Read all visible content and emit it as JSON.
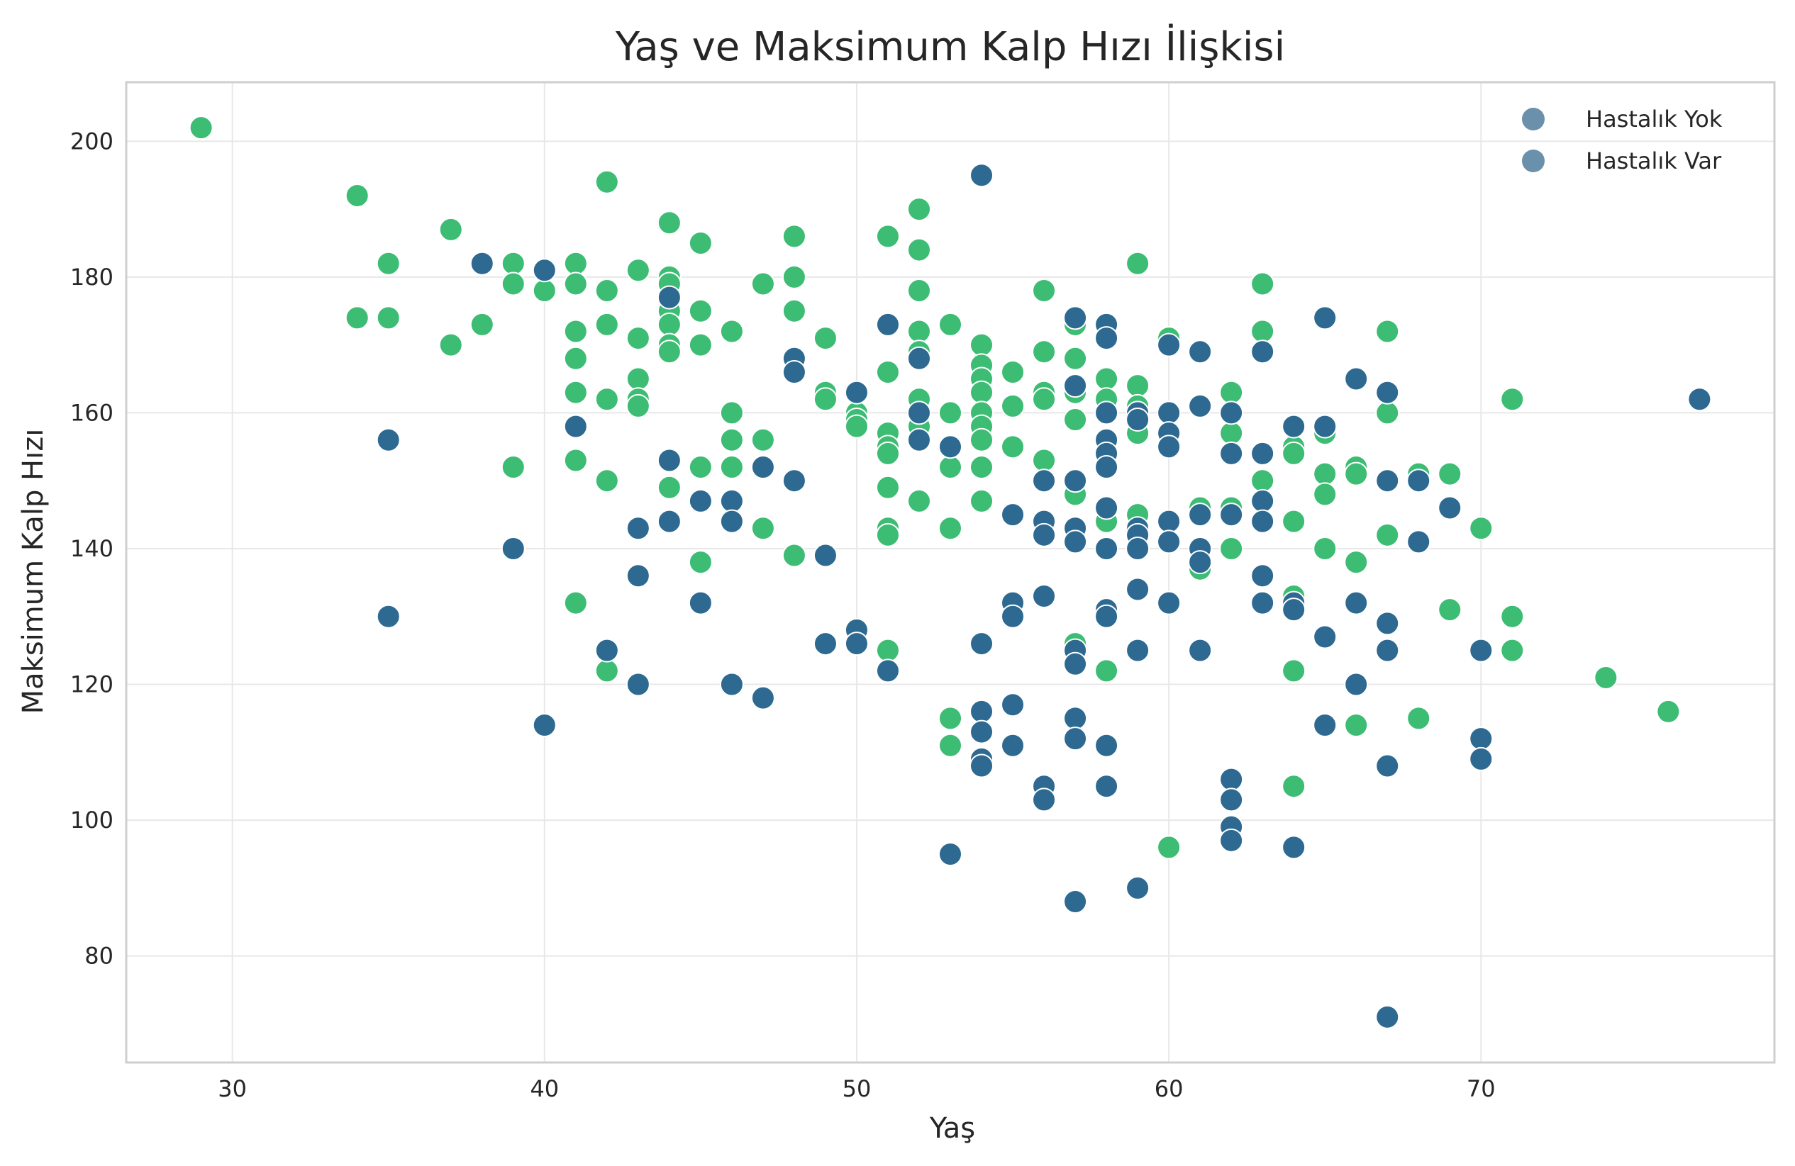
{
  "chart_data": {
    "type": "scatter",
    "title": "Yaş ve Maksimum Kalp Hızı İlişkisi",
    "xlabel": "Yaş",
    "ylabel": "Maksimum Kalp Hızı",
    "xlim": [
      26.6,
      79.4
    ],
    "ylim": [
      64.3,
      208.7
    ],
    "xticks": [
      30,
      40,
      50,
      60,
      70
    ],
    "yticks": [
      80,
      100,
      120,
      140,
      160,
      180,
      200
    ],
    "grid": true,
    "legend_position": "top-right",
    "colors": {
      "hastalik_var": "#3dbc74",
      "hastalik_yok": "#2d6990",
      "legend_marker": "#6b90ab"
    },
    "legend": [
      {
        "label": "Hastalık Yok"
      },
      {
        "label": "Hastalık Var"
      }
    ],
    "series": [
      {
        "key": "hastalik_var",
        "points": [
          [
            29,
            202
          ],
          [
            34,
            192
          ],
          [
            34,
            174
          ],
          [
            35,
            182
          ],
          [
            35,
            174
          ],
          [
            37,
            187
          ],
          [
            37,
            170
          ],
          [
            38,
            173
          ],
          [
            39,
            182
          ],
          [
            39,
            179
          ],
          [
            39,
            152
          ],
          [
            40,
            178
          ],
          [
            41,
            182
          ],
          [
            41,
            179
          ],
          [
            41,
            172
          ],
          [
            41,
            168
          ],
          [
            41,
            163
          ],
          [
            41,
            153
          ],
          [
            41,
            132
          ],
          [
            42,
            194
          ],
          [
            42,
            178
          ],
          [
            42,
            173
          ],
          [
            42,
            162
          ],
          [
            42,
            150
          ],
          [
            42,
            122
          ],
          [
            43,
            181
          ],
          [
            43,
            171
          ],
          [
            43,
            165
          ],
          [
            43,
            162
          ],
          [
            43,
            161
          ],
          [
            44,
            188
          ],
          [
            44,
            180
          ],
          [
            44,
            179
          ],
          [
            44,
            175
          ],
          [
            44,
            173
          ],
          [
            44,
            170
          ],
          [
            44,
            169
          ],
          [
            44,
            149
          ],
          [
            45,
            185
          ],
          [
            45,
            175
          ],
          [
            45,
            170
          ],
          [
            45,
            152
          ],
          [
            45,
            138
          ],
          [
            46,
            172
          ],
          [
            46,
            160
          ],
          [
            46,
            156
          ],
          [
            46,
            152
          ],
          [
            47,
            179
          ],
          [
            47,
            156
          ],
          [
            47,
            143
          ],
          [
            48,
            186
          ],
          [
            48,
            180
          ],
          [
            48,
            175
          ],
          [
            48,
            139
          ],
          [
            49,
            171
          ],
          [
            49,
            163
          ],
          [
            49,
            162
          ],
          [
            50,
            160
          ],
          [
            50,
            159
          ],
          [
            50,
            158
          ],
          [
            51,
            186
          ],
          [
            51,
            166
          ],
          [
            51,
            157
          ],
          [
            51,
            155
          ],
          [
            51,
            154
          ],
          [
            51,
            149
          ],
          [
            51,
            143
          ],
          [
            51,
            142
          ],
          [
            51,
            125
          ],
          [
            52,
            190
          ],
          [
            52,
            184
          ],
          [
            52,
            178
          ],
          [
            52,
            172
          ],
          [
            52,
            169
          ],
          [
            52,
            162
          ],
          [
            52,
            158
          ],
          [
            52,
            147
          ],
          [
            53,
            173
          ],
          [
            53,
            160
          ],
          [
            53,
            152
          ],
          [
            53,
            143
          ],
          [
            53,
            115
          ],
          [
            53,
            111
          ],
          [
            54,
            170
          ],
          [
            54,
            167
          ],
          [
            54,
            165
          ],
          [
            54,
            163
          ],
          [
            54,
            160
          ],
          [
            54,
            158
          ],
          [
            54,
            156
          ],
          [
            54,
            152
          ],
          [
            54,
            147
          ],
          [
            55,
            166
          ],
          [
            55,
            161
          ],
          [
            55,
            155
          ],
          [
            56,
            178
          ],
          [
            56,
            169
          ],
          [
            56,
            163
          ],
          [
            56,
            162
          ],
          [
            56,
            153
          ],
          [
            57,
            173
          ],
          [
            57,
            168
          ],
          [
            57,
            163
          ],
          [
            57,
            159
          ],
          [
            57,
            148
          ],
          [
            57,
            126
          ],
          [
            58,
            165
          ],
          [
            58,
            162
          ],
          [
            58,
            154
          ],
          [
            58,
            144
          ],
          [
            58,
            122
          ],
          [
            59,
            182
          ],
          [
            59,
            164
          ],
          [
            59,
            161
          ],
          [
            59,
            157
          ],
          [
            59,
            145
          ],
          [
            60,
            171
          ],
          [
            60,
            96
          ],
          [
            61,
            146
          ],
          [
            61,
            137
          ],
          [
            62,
            163
          ],
          [
            62,
            157
          ],
          [
            62,
            146
          ],
          [
            62,
            140
          ],
          [
            63,
            179
          ],
          [
            63,
            172
          ],
          [
            63,
            150
          ],
          [
            64,
            155
          ],
          [
            64,
            154
          ],
          [
            64,
            144
          ],
          [
            64,
            133
          ],
          [
            64,
            122
          ],
          [
            64,
            105
          ],
          [
            65,
            157
          ],
          [
            65,
            151
          ],
          [
            65,
            148
          ],
          [
            65,
            140
          ],
          [
            66,
            152
          ],
          [
            66,
            151
          ],
          [
            66,
            138
          ],
          [
            66,
            114
          ],
          [
            67,
            172
          ],
          [
            67,
            160
          ],
          [
            67,
            142
          ],
          [
            68,
            151
          ],
          [
            68,
            115
          ],
          [
            69,
            151
          ],
          [
            69,
            131
          ],
          [
            70,
            143
          ],
          [
            71,
            162
          ],
          [
            71,
            130
          ],
          [
            71,
            125
          ],
          [
            74,
            121
          ],
          [
            76,
            116
          ]
        ]
      },
      {
        "key": "hastalik_yok",
        "points": [
          [
            35,
            156
          ],
          [
            35,
            130
          ],
          [
            38,
            182
          ],
          [
            39,
            140
          ],
          [
            40,
            181
          ],
          [
            40,
            114
          ],
          [
            41,
            158
          ],
          [
            42,
            125
          ],
          [
            43,
            143
          ],
          [
            43,
            136
          ],
          [
            43,
            120
          ],
          [
            44,
            177
          ],
          [
            44,
            153
          ],
          [
            44,
            144
          ],
          [
            45,
            147
          ],
          [
            45,
            132
          ],
          [
            46,
            147
          ],
          [
            46,
            144
          ],
          [
            46,
            120
          ],
          [
            47,
            152
          ],
          [
            47,
            118
          ],
          [
            48,
            168
          ],
          [
            48,
            166
          ],
          [
            48,
            150
          ],
          [
            49,
            139
          ],
          [
            49,
            126
          ],
          [
            50,
            163
          ],
          [
            50,
            128
          ],
          [
            50,
            126
          ],
          [
            51,
            173
          ],
          [
            51,
            122
          ],
          [
            52,
            168
          ],
          [
            52,
            160
          ],
          [
            52,
            156
          ],
          [
            53,
            155
          ],
          [
            53,
            95
          ],
          [
            54,
            195
          ],
          [
            54,
            126
          ],
          [
            54,
            116
          ],
          [
            54,
            113
          ],
          [
            54,
            109
          ],
          [
            54,
            108
          ],
          [
            55,
            145
          ],
          [
            55,
            132
          ],
          [
            55,
            130
          ],
          [
            55,
            117
          ],
          [
            55,
            111
          ],
          [
            56,
            150
          ],
          [
            56,
            144
          ],
          [
            56,
            142
          ],
          [
            56,
            133
          ],
          [
            56,
            105
          ],
          [
            56,
            103
          ],
          [
            57,
            174
          ],
          [
            57,
            164
          ],
          [
            57,
            150
          ],
          [
            57,
            143
          ],
          [
            57,
            141
          ],
          [
            57,
            125
          ],
          [
            57,
            123
          ],
          [
            57,
            115
          ],
          [
            57,
            112
          ],
          [
            57,
            88
          ],
          [
            58,
            173
          ],
          [
            58,
            171
          ],
          [
            58,
            160
          ],
          [
            58,
            156
          ],
          [
            58,
            154
          ],
          [
            58,
            152
          ],
          [
            58,
            146
          ],
          [
            58,
            140
          ],
          [
            58,
            131
          ],
          [
            58,
            130
          ],
          [
            58,
            111
          ],
          [
            58,
            105
          ],
          [
            59,
            160
          ],
          [
            59,
            159
          ],
          [
            59,
            143
          ],
          [
            59,
            142
          ],
          [
            59,
            140
          ],
          [
            59,
            134
          ],
          [
            59,
            125
          ],
          [
            59,
            90
          ],
          [
            60,
            170
          ],
          [
            60,
            160
          ],
          [
            60,
            157
          ],
          [
            60,
            155
          ],
          [
            60,
            144
          ],
          [
            60,
            141
          ],
          [
            60,
            132
          ],
          [
            61,
            169
          ],
          [
            61,
            161
          ],
          [
            61,
            145
          ],
          [
            61,
            140
          ],
          [
            61,
            138
          ],
          [
            61,
            125
          ],
          [
            62,
            160
          ],
          [
            62,
            154
          ],
          [
            62,
            145
          ],
          [
            62,
            106
          ],
          [
            62,
            103
          ],
          [
            62,
            99
          ],
          [
            62,
            97
          ],
          [
            63,
            169
          ],
          [
            63,
            154
          ],
          [
            63,
            147
          ],
          [
            63,
            144
          ],
          [
            63,
            136
          ],
          [
            63,
            132
          ],
          [
            64,
            158
          ],
          [
            64,
            132
          ],
          [
            64,
            131
          ],
          [
            64,
            96
          ],
          [
            65,
            174
          ],
          [
            65,
            158
          ],
          [
            65,
            127
          ],
          [
            65,
            114
          ],
          [
            66,
            165
          ],
          [
            66,
            132
          ],
          [
            66,
            120
          ],
          [
            67,
            163
          ],
          [
            67,
            150
          ],
          [
            67,
            129
          ],
          [
            67,
            125
          ],
          [
            67,
            108
          ],
          [
            67,
            71
          ],
          [
            68,
            150
          ],
          [
            68,
            141
          ],
          [
            69,
            146
          ],
          [
            70,
            125
          ],
          [
            70,
            112
          ],
          [
            70,
            109
          ],
          [
            77,
            162
          ]
        ]
      }
    ]
  }
}
